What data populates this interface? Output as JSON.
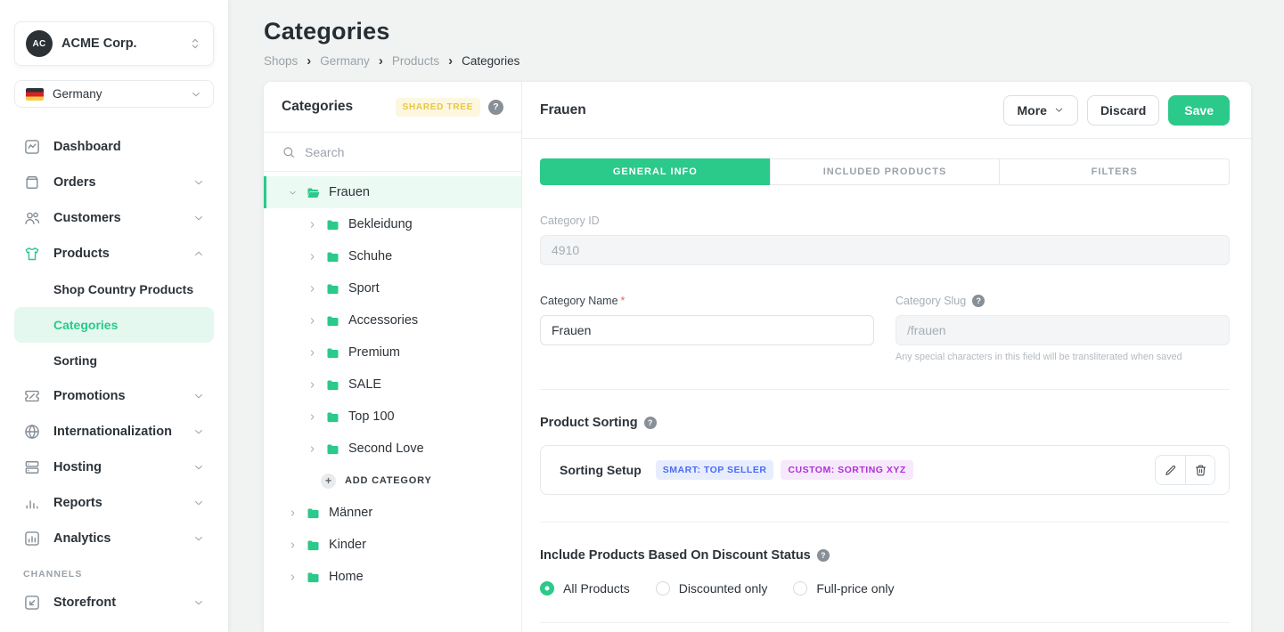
{
  "colors": {
    "accent_green": "#2bc98a",
    "selected_mint": "#e4f8ef",
    "badge_yellow_text": "#eac642",
    "badge_yellow_bg": "#fdf7e0",
    "badge_blue_text": "#4a6bf5",
    "badge_blue_bg": "#e8edfe",
    "badge_purple_text": "#b02fd6",
    "badge_purple_bg": "#f7e9fc"
  },
  "icons": {
    "help-icon": "?",
    "plus-icon": "+",
    "search-icon": "magnifier",
    "folder-icon": "green closed folder",
    "folder-open-icon": "green open folder",
    "chevron-down-icon": "v chevron",
    "chevron-up-icon": "^ chevron",
    "chevron-right-icon": "> chevron",
    "selector-icon": "up-down chevrons",
    "dashboard-icon": "activity chart in square",
    "orders-icon": "package box",
    "customers-icon": "two people",
    "products-icon": "t-shirt",
    "promotions-icon": "coupon ticket",
    "globe-icon": "globe",
    "hosting-icon": "server stack",
    "reports-icon": "bar chart",
    "analytics-icon": "bar chart in square",
    "storefront-icon": "square with corner arrow",
    "pencil-icon": "edit pencil",
    "trash-icon": "trash bin"
  },
  "sidebar": {
    "org": {
      "initials": "AC",
      "name": "ACME Corp."
    },
    "shop": {
      "name": "Germany"
    },
    "nav": [
      {
        "type": "item",
        "label": "Dashboard",
        "icon": "dashboard-icon"
      },
      {
        "type": "item",
        "label": "Orders",
        "icon": "orders-icon",
        "chevron": "down"
      },
      {
        "type": "item",
        "label": "Customers",
        "icon": "customers-icon",
        "chevron": "down"
      },
      {
        "type": "item",
        "label": "Products",
        "icon": "products-icon",
        "chevron": "up"
      },
      {
        "type": "subitem",
        "label": "Shop Country Products"
      },
      {
        "type": "subitem",
        "label": "Categories",
        "active": true
      },
      {
        "type": "subitem",
        "label": "Sorting"
      },
      {
        "type": "item",
        "label": "Promotions",
        "icon": "promotions-icon",
        "chevron": "down"
      },
      {
        "type": "item",
        "label": "Internationalization",
        "icon": "globe-icon",
        "chevron": "down"
      },
      {
        "type": "item",
        "label": "Hosting",
        "icon": "hosting-icon",
        "chevron": "down"
      },
      {
        "type": "item",
        "label": "Reports",
        "icon": "reports-icon",
        "chevron": "down"
      },
      {
        "type": "item",
        "label": "Analytics",
        "icon": "analytics-icon",
        "chevron": "down"
      },
      {
        "type": "section",
        "label": "CHANNELS"
      },
      {
        "type": "item",
        "label": "Storefront",
        "icon": "storefront-icon",
        "chevron": "down"
      }
    ]
  },
  "header": {
    "title": "Categories",
    "breadcrumb": [
      "Shops",
      "Germany",
      "Products",
      "Categories"
    ],
    "breadcrumb_separator": "›"
  },
  "tree_panel": {
    "title": "Categories",
    "badge": "SHARED TREE",
    "search_placeholder": "Search",
    "items": [
      {
        "label": "Frauen",
        "level": 0,
        "expanded": true,
        "selected": true
      },
      {
        "label": "Bekleidung",
        "level": 1
      },
      {
        "label": "Schuhe",
        "level": 1
      },
      {
        "label": "Sport",
        "level": 1
      },
      {
        "label": "Accessories",
        "level": 1
      },
      {
        "label": "Premium",
        "level": 1
      },
      {
        "label": "SALE",
        "level": 1
      },
      {
        "label": "Top 100",
        "level": 1
      },
      {
        "label": "Second Love",
        "level": 1
      },
      {
        "type": "add",
        "label": "ADD CATEGORY"
      },
      {
        "label": "Männer",
        "level": 0
      },
      {
        "label": "Kinder",
        "level": 0
      },
      {
        "label": "Home",
        "level": 0
      }
    ]
  },
  "detail": {
    "title": "Frauen",
    "buttons": {
      "more": "More",
      "discard": "Discard",
      "save": "Save"
    },
    "tabs": [
      {
        "label": "GENERAL INFO",
        "active": true
      },
      {
        "label": "INCLUDED PRODUCTS"
      },
      {
        "label": "FILTERS"
      }
    ],
    "category_id": {
      "label": "Category ID",
      "value": "4910"
    },
    "category_name": {
      "label": "Category Name",
      "required_mark": "*",
      "value": "Frauen"
    },
    "category_slug": {
      "label": "Category Slug",
      "value": "/frauen",
      "helper": "Any special characters in this field will be transliterated when saved"
    },
    "product_sorting": {
      "title": "Product Sorting",
      "row_title": "Sorting Setup",
      "badges": [
        {
          "label": "SMART: TOP SELLER",
          "style": "blue"
        },
        {
          "label": "CUSTOM: SORTING XYZ",
          "style": "purple"
        }
      ]
    },
    "discount_status": {
      "title": "Include Products Based On Discount Status",
      "options": [
        {
          "label": "All Products",
          "selected": true
        },
        {
          "label": "Discounted only"
        },
        {
          "label": "Full-price only"
        }
      ]
    }
  }
}
